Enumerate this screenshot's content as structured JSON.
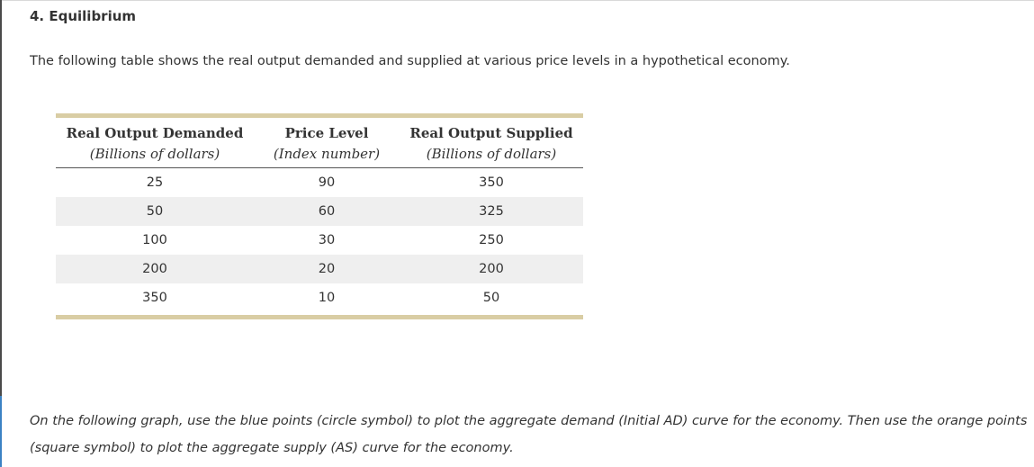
{
  "section": {
    "title": "4. Equilibrium"
  },
  "intro": {
    "text": "The following table shows the real output demanded and supplied at various price levels in a hypothetical economy."
  },
  "table": {
    "headers": [
      {
        "label": "Real Output Demanded",
        "sub": "(Billions of dollars)"
      },
      {
        "label": "Price Level",
        "sub": "(Index number)"
      },
      {
        "label": "Real Output Supplied",
        "sub": "(Billions of dollars)"
      }
    ],
    "rows": [
      {
        "demanded": "25",
        "price": "90",
        "supplied": "350"
      },
      {
        "demanded": "50",
        "price": "60",
        "supplied": "325"
      },
      {
        "demanded": "100",
        "price": "30",
        "supplied": "250"
      },
      {
        "demanded": "200",
        "price": "20",
        "supplied": "200"
      },
      {
        "demanded": "350",
        "price": "10",
        "supplied": "50"
      }
    ]
  },
  "instructions": {
    "text": "On the following graph, use the blue points (circle symbol) to plot the aggregate demand (Initial AD) curve for the economy. Then use the orange points (square symbol) to plot the aggregate supply (AS) curve for the economy."
  },
  "colors": {
    "table_bar": "#d9cda4",
    "row_shade": "#efefef",
    "left_accent": "#3b82c4"
  }
}
